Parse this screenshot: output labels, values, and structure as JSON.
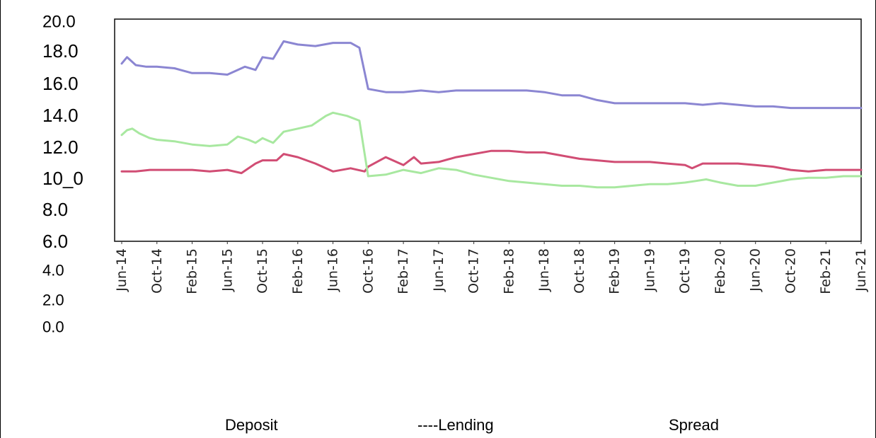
{
  "chart_data": {
    "type": "line",
    "title": "",
    "xlabel": "",
    "ylabel": "",
    "ylim": [
      0,
      20
    ],
    "y_tick_labels": [
      "0.0",
      "2.0",
      "4.0",
      "6.0",
      "8.0",
      "10_0",
      "12.0",
      "14.0",
      "16.0",
      "18.0",
      "20.0"
    ],
    "x_tick_labels": [
      "Jun-14",
      "Oct-14",
      "Feb-15",
      "Jun-15",
      "Oct-15",
      "Feb-16",
      "Jun-16",
      "Oct-16",
      "Feb-17",
      "Jun-17",
      "Oct-17",
      "Feb-18",
      "Jun-18",
      "Oct-18",
      "Feb-19",
      "Jun-19",
      "Oct-19",
      "Feb-20",
      "Jun-20",
      "Oct-20",
      "Feb-21",
      "Jun-21"
    ],
    "grid": false,
    "legend_position": "bottom",
    "legend_labels": [
      "Deposit",
      "----Lending",
      "Spread"
    ],
    "series": [
      {
        "color": "#8b86d2",
        "x": [
          0,
          0.15,
          0.4,
          0.7,
          1,
          1.5,
          2,
          2.5,
          3,
          3.5,
          3.8,
          4,
          4.3,
          4.6,
          5,
          5.5,
          6,
          6.3,
          6.5,
          6.75,
          7,
          7.5,
          8,
          8.5,
          9,
          9.5,
          10,
          10.5,
          11,
          11.5,
          12,
          12.5,
          13,
          13.5,
          14,
          14.5,
          15,
          15.5,
          16,
          16.5,
          17,
          17.5,
          18,
          18.5,
          19,
          19.5,
          20,
          20.5,
          21
        ],
        "values": [
          17.2,
          17.6,
          17.1,
          17.0,
          17.0,
          16.9,
          16.6,
          16.6,
          16.5,
          17.0,
          16.8,
          17.6,
          17.5,
          18.6,
          18.4,
          18.3,
          18.5,
          18.5,
          18.5,
          18.2,
          15.6,
          15.4,
          15.4,
          15.5,
          15.4,
          15.5,
          15.5,
          15.5,
          15.5,
          15.5,
          15.4,
          15.2,
          15.2,
          14.9,
          14.7,
          14.7,
          14.7,
          14.7,
          14.7,
          14.6,
          14.7,
          14.6,
          14.5,
          14.5,
          14.4,
          14.4,
          14.4,
          14.4,
          14.4
        ]
      },
      {
        "color": "#d14d74",
        "x": [
          0,
          0.4,
          0.8,
          1,
          1.5,
          2,
          2.5,
          3,
          3.4,
          3.8,
          4,
          4.4,
          4.6,
          5,
          5.5,
          6,
          6.5,
          6.9,
          7,
          7.5,
          8,
          8.3,
          8.5,
          9,
          9.5,
          10,
          10.5,
          11,
          11.5,
          12,
          12.5,
          13,
          13.5,
          14,
          14.5,
          15,
          15.5,
          16,
          16.2,
          16.5,
          17,
          17.5,
          18,
          18.5,
          19,
          19.5,
          20,
          20.5,
          21
        ],
        "values": [
          10.4,
          10.4,
          10.5,
          10.5,
          10.5,
          10.5,
          10.4,
          10.5,
          10.3,
          10.9,
          11.1,
          11.1,
          11.5,
          11.3,
          10.9,
          10.4,
          10.6,
          10.4,
          10.7,
          11.3,
          10.8,
          11.3,
          10.9,
          11.0,
          11.3,
          11.5,
          11.7,
          11.7,
          11.6,
          11.6,
          11.4,
          11.2,
          11.1,
          11.0,
          11.0,
          11.0,
          10.9,
          10.8,
          10.6,
          10.9,
          10.9,
          10.9,
          10.8,
          10.7,
          10.5,
          10.4,
          10.5,
          10.5,
          10.5
        ]
      },
      {
        "color": "#a8e8a0",
        "x": [
          0,
          0.15,
          0.3,
          0.5,
          0.8,
          1,
          1.5,
          2,
          2.5,
          3,
          3.3,
          3.6,
          3.8,
          4,
          4.3,
          4.6,
          5,
          5.4,
          5.8,
          6,
          6.4,
          6.75,
          7,
          7.5,
          8,
          8.5,
          9,
          9.5,
          10,
          10.5,
          11,
          11.5,
          12,
          12.5,
          13,
          13.5,
          14,
          14.5,
          15,
          15.5,
          16,
          16.3,
          16.6,
          17,
          17.5,
          18,
          18.5,
          19,
          19.5,
          20,
          20.5,
          21
        ],
        "values": [
          12.7,
          13.0,
          13.1,
          12.8,
          12.5,
          12.4,
          12.3,
          12.1,
          12.0,
          12.1,
          12.6,
          12.4,
          12.2,
          12.5,
          12.2,
          12.9,
          13.1,
          13.3,
          13.9,
          14.1,
          13.9,
          13.6,
          10.1,
          10.2,
          10.5,
          10.3,
          10.6,
          10.5,
          10.2,
          10.0,
          9.8,
          9.7,
          9.6,
          9.5,
          9.5,
          9.4,
          9.4,
          9.5,
          9.6,
          9.6,
          9.7,
          9.8,
          9.9,
          9.7,
          9.5,
          9.5,
          9.7,
          9.9,
          10.0,
          10.0,
          10.1,
          10.1
        ]
      }
    ]
  }
}
